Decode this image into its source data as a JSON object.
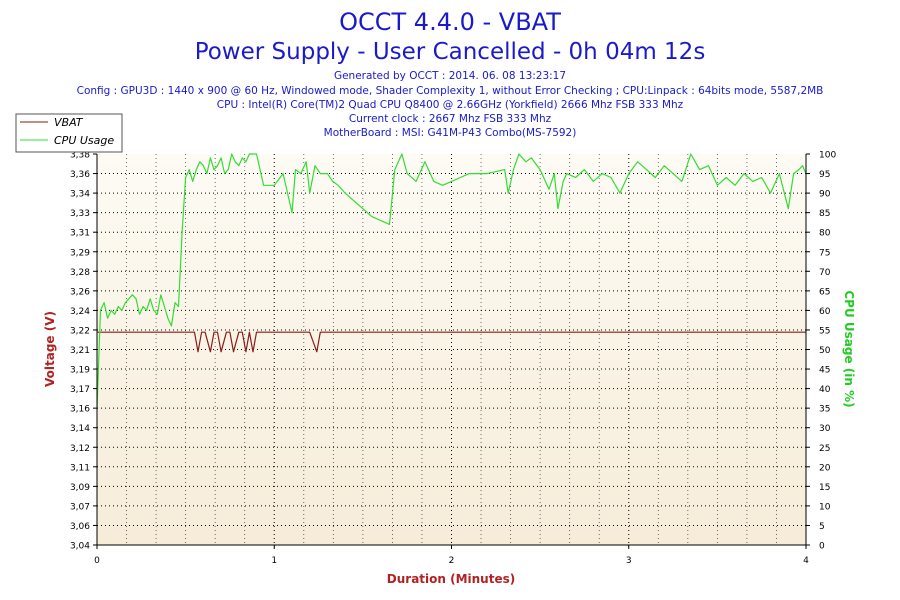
{
  "chart_data": {
    "type": "line",
    "title": "OCCT 4.4.0 - VBAT",
    "subtitle": "Power Supply - User Cancelled - 0h 04m 12s",
    "info_lines": [
      "Generated by OCCT : 2014. 06. 08 13:23:17",
      "Config : GPU3D : 1440 x 900 @ 60 Hz, Windowed mode, Shader Complexity 1, without Error Checking ; CPU:Linpack : 64bits mode, 5587,2MB",
      "CPU : Intel(R) Core(TM)2 Quad CPU Q8400 @ 2.66GHz (Yorkfield) 2666 Mhz FSB 333 Mhz",
      "Current clock : 2667 Mhz FSB 333 Mhz",
      "MotherBoard : MSI: G41M-P43 Combo(MS-7592)"
    ],
    "xlabel": "Duration (Minutes)",
    "ylabel": "Voltage (V)",
    "y2label": "CPU Usage (in %)",
    "xlim": [
      0,
      4
    ],
    "ylim": [
      3.04,
      3.38
    ],
    "y2lim": [
      0,
      100
    ],
    "x_ticks": [
      "0",
      "1",
      "2",
      "3",
      "4"
    ],
    "y_ticks": [
      "3,04",
      "3,06",
      "3,07",
      "3,09",
      "3,11",
      "3,12",
      "3,14",
      "3,16",
      "3,17",
      "3,19",
      "3,21",
      "3,22",
      "3,24",
      "3,26",
      "3,28",
      "3,29",
      "3,31",
      "3,33",
      "3,34",
      "3,36",
      "3,38"
    ],
    "y2_ticks": [
      "0",
      "5",
      "10",
      "15",
      "20",
      "25",
      "30",
      "35",
      "40",
      "45",
      "50",
      "55",
      "60",
      "65",
      "70",
      "75",
      "80",
      "85",
      "90",
      "95",
      "100"
    ],
    "grid": true,
    "legend_position": "top-left",
    "series": [
      {
        "name": "VBAT",
        "axis": "left",
        "color": "#8b1a1a",
        "x": [
          0,
          0.55,
          0.57,
          0.59,
          0.61,
          0.64,
          0.66,
          0.68,
          0.7,
          0.73,
          0.75,
          0.77,
          0.8,
          0.82,
          0.84,
          0.86,
          0.88,
          0.9,
          0.92,
          1.2,
          1.24,
          1.26,
          4.0
        ],
        "values": [
          3.225,
          3.225,
          3.208,
          3.225,
          3.225,
          3.208,
          3.225,
          3.225,
          3.208,
          3.225,
          3.225,
          3.208,
          3.225,
          3.225,
          3.208,
          3.225,
          3.208,
          3.225,
          3.225,
          3.225,
          3.208,
          3.225,
          3.225
        ]
      },
      {
        "name": "CPU Usage",
        "axis": "right",
        "color": "#33dd33",
        "x": [
          0,
          0.02,
          0.04,
          0.06,
          0.08,
          0.1,
          0.12,
          0.14,
          0.16,
          0.18,
          0.2,
          0.22,
          0.24,
          0.26,
          0.28,
          0.3,
          0.32,
          0.34,
          0.36,
          0.38,
          0.4,
          0.42,
          0.44,
          0.46,
          0.48,
          0.5,
          0.52,
          0.54,
          0.56,
          0.58,
          0.6,
          0.62,
          0.64,
          0.66,
          0.68,
          0.7,
          0.72,
          0.74,
          0.76,
          0.78,
          0.8,
          0.82,
          0.84,
          0.86,
          0.88,
          0.9,
          0.94,
          0.98,
          1.0,
          1.05,
          1.1,
          1.12,
          1.15,
          1.18,
          1.2,
          1.23,
          1.26,
          1.3,
          1.33,
          1.36,
          1.4,
          1.45,
          1.5,
          1.55,
          1.6,
          1.65,
          1.68,
          1.72,
          1.75,
          1.8,
          1.85,
          1.9,
          1.95,
          2.0,
          2.05,
          2.1,
          2.2,
          2.3,
          2.32,
          2.35,
          2.38,
          2.42,
          2.45,
          2.5,
          2.55,
          2.58,
          2.6,
          2.63,
          2.65,
          2.7,
          2.75,
          2.8,
          2.85,
          2.9,
          2.95,
          3.0,
          3.05,
          3.1,
          3.15,
          3.2,
          3.25,
          3.3,
          3.35,
          3.4,
          3.45,
          3.5,
          3.55,
          3.6,
          3.65,
          3.7,
          3.75,
          3.8,
          3.85,
          3.9,
          3.93,
          3.96,
          3.98,
          4.0
        ],
        "values": [
          35,
          60,
          62,
          58,
          60,
          59,
          61,
          60,
          62,
          63,
          64,
          63,
          59,
          61,
          60,
          63,
          60,
          59,
          64,
          61,
          58,
          56,
          62,
          61,
          80,
          94,
          96,
          93,
          96,
          98,
          97,
          95,
          99,
          96,
          97,
          99,
          95,
          96,
          100,
          98,
          97,
          99,
          98,
          100,
          100,
          100,
          92,
          92,
          92,
          95,
          85,
          96,
          95,
          98,
          90,
          97,
          95,
          95,
          93,
          92,
          90,
          88,
          86,
          84,
          83,
          82,
          96,
          100,
          95,
          93,
          98,
          93,
          92,
          93,
          94,
          95,
          95,
          96,
          90,
          96,
          100,
          98,
          99,
          96,
          91,
          95,
          86,
          93,
          95,
          94,
          96,
          93,
          95,
          94,
          90,
          95,
          98,
          96,
          94,
          97,
          95,
          93,
          100,
          96,
          97,
          92,
          94,
          92,
          95,
          93,
          94,
          90,
          95,
          86,
          95,
          96,
          97,
          95
        ]
      }
    ]
  }
}
